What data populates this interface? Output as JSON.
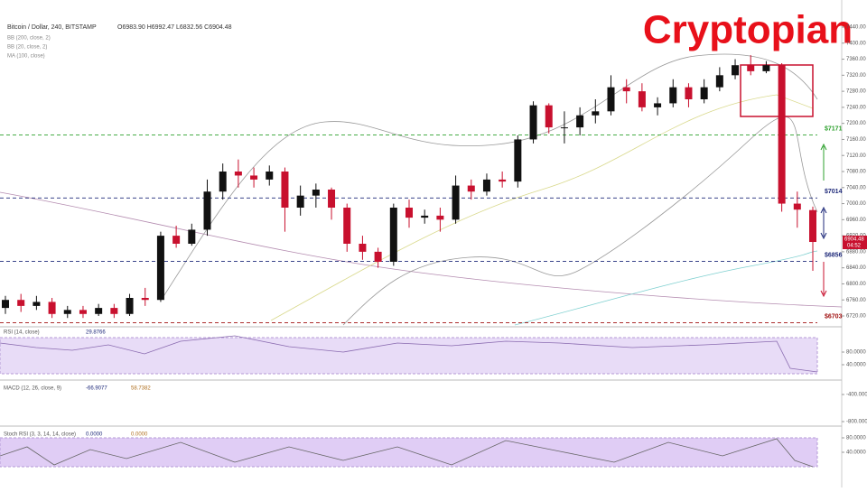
{
  "chart_data": {
    "type": "candlestick",
    "title": "Cryptopian",
    "symbol": "Bitcoin / Dollar, 240, BITSTAMP",
    "ohlc_header": "O6983.90 H6992.47 L6832.56 C6904.48",
    "overlays": [
      "BB (200, close, 2)",
      "BB (20, close, 2)",
      "MA (100, close)"
    ],
    "series": {
      "open": [
        6740,
        6760,
        6745,
        6755,
        6725,
        6735,
        6725,
        6740,
        6725,
        6765,
        6760,
        6920,
        6900,
        6935,
        7030,
        7080,
        7070,
        7060,
        7080,
        6990,
        7020,
        7035,
        6990,
        6900,
        6880,
        6855,
        6990,
        6965,
        6970,
        6960,
        7045,
        7030,
        7060,
        7055,
        7160,
        7245,
        7190,
        7190,
        7220,
        7230,
        7290,
        7280,
        7240,
        7250,
        7290,
        7260,
        7290,
        7320,
        7345,
        7330,
        7345,
        7000,
        6983.9
      ],
      "high": [
        6770,
        6775,
        6770,
        6765,
        6745,
        6745,
        6750,
        6750,
        6775,
        6790,
        6930,
        6945,
        6950,
        7060,
        7100,
        7110,
        7090,
        7095,
        7090,
        7045,
        7050,
        7040,
        7000,
        6920,
        6890,
        7000,
        7010,
        6985,
        6990,
        7070,
        7060,
        7075,
        7080,
        7170,
        7255,
        7250,
        7230,
        7240,
        7260,
        7320,
        7310,
        7300,
        7265,
        7310,
        7300,
        7310,
        7340,
        7360,
        7370,
        7355,
        7350,
        7030,
        6992.47
      ],
      "low": [
        6725,
        6730,
        6735,
        6715,
        6715,
        6715,
        6720,
        6715,
        6720,
        6745,
        6755,
        6890,
        6895,
        6920,
        7010,
        7040,
        7040,
        7045,
        6930,
        6970,
        6990,
        6960,
        6880,
        6860,
        6840,
        6845,
        6940,
        6950,
        6930,
        6950,
        7010,
        7020,
        7040,
        7040,
        7150,
        7175,
        7150,
        7170,
        7200,
        7220,
        7250,
        7230,
        7220,
        7240,
        7240,
        7250,
        7280,
        7310,
        7320,
        7325,
        6980,
        6940,
        6832.56
      ],
      "close": [
        6760,
        6745,
        6755,
        6725,
        6735,
        6725,
        6740,
        6725,
        6765,
        6760,
        6920,
        6900,
        6935,
        7030,
        7080,
        7070,
        7060,
        7080,
        6990,
        7020,
        7035,
        6990,
        6900,
        6880,
        6855,
        6990,
        6965,
        6970,
        6960,
        7045,
        7030,
        7060,
        7055,
        7160,
        7245,
        7190,
        7190,
        7220,
        7230,
        7290,
        7280,
        7240,
        7250,
        7290,
        7260,
        7290,
        7320,
        7345,
        7330,
        7345,
        7000,
        6985,
        6904.48
      ],
      "up_color": "#111111",
      "down_color": "#c8102e"
    },
    "current_time": "04:52",
    "ylim": [
      6720,
      7440
    ],
    "yticks": [
      {
        "value": 6720,
        "label": "6720.00"
      },
      {
        "value": 6760,
        "label": "6760.00"
      },
      {
        "value": 6800,
        "label": "6800.00"
      },
      {
        "value": 6840,
        "label": "6840.00"
      },
      {
        "value": 6880,
        "label": "6880.00"
      },
      {
        "value": 6920,
        "label": "6920.00"
      },
      {
        "value": 6960,
        "label": "6960.00"
      },
      {
        "value": 7000,
        "label": "7000.00"
      },
      {
        "value": 7040,
        "label": "7040.00"
      },
      {
        "value": 7080,
        "label": "7080.00"
      },
      {
        "value": 7120,
        "label": "7120.00"
      },
      {
        "value": 7160,
        "label": "7160.00"
      },
      {
        "value": 7200,
        "label": "7200.00"
      },
      {
        "value": 7240,
        "label": "7240.00"
      },
      {
        "value": 7280,
        "label": "7280.00"
      },
      {
        "value": 7320,
        "label": "7320.00"
      },
      {
        "value": 7360,
        "label": "7360.00"
      },
      {
        "value": 7400,
        "label": "7400.00"
      },
      {
        "value": 7440,
        "label": "7440.00"
      }
    ],
    "levels": [
      {
        "value": 7171,
        "label": "$7171",
        "color": "#2ca02c"
      },
      {
        "value": 7014,
        "label": "$7014",
        "color": "#1f2a7a"
      },
      {
        "value": 6856,
        "label": "$6856",
        "color": "#1f2a7a"
      },
      {
        "value": 6703,
        "label": "$6703",
        "color": "#a01010"
      }
    ],
    "panes": [
      {
        "title": "RSI (14, close)",
        "readings": [
          "29.8766"
        ],
        "ticks": [
          {
            "value": 80,
            "label": "80.0000"
          },
          {
            "value": 40,
            "label": "40.0000"
          }
        ]
      },
      {
        "title": "MACD (12, 26, close, 9)",
        "readings": [
          "-66.9077",
          "58.7382"
        ],
        "ticks": [
          {
            "value": -400,
            "label": "-400.0000"
          },
          {
            "value": -800,
            "label": "-800.0000"
          }
        ]
      },
      {
        "title": "Stoch RSI (3, 3, 14, 14, close)",
        "readings": [
          "0.0000",
          "0.0000"
        ],
        "ticks": [
          {
            "value": 80,
            "label": "80.0000"
          },
          {
            "value": 40,
            "label": "40.0000"
          }
        ]
      }
    ]
  }
}
